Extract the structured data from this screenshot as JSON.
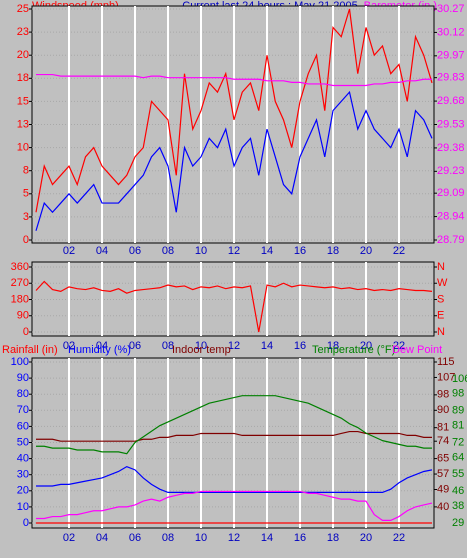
{
  "chart_data": [
    {
      "type": "line",
      "title": "Current last 24 hours : May 21 2005",
      "ylabel": "Windspeed (mph)",
      "y2label": "Barometer (in.)",
      "xlim": [
        0,
        24
      ],
      "xticks": [
        {
          "value": 2,
          "label": "02"
        },
        {
          "value": 4,
          "label": "04"
        },
        {
          "value": 6,
          "label": "06"
        },
        {
          "value": 8,
          "label": "08"
        },
        {
          "value": 10,
          "label": "10"
        },
        {
          "value": 12,
          "label": "12"
        },
        {
          "value": 14,
          "label": "14"
        },
        {
          "value": 16,
          "label": "16"
        },
        {
          "value": 18,
          "label": "18"
        },
        {
          "value": 20,
          "label": "20"
        },
        {
          "value": 22,
          "label": "22"
        }
      ],
      "ylim": [
        0,
        25
      ],
      "yticks": [
        0,
        {
          "value": 2.5,
          "label": "3"
        },
        5,
        {
          "value": 7.5,
          "label": "8"
        },
        10,
        {
          "value": 12.5,
          "label": "13"
        },
        15,
        {
          "value": 17.5,
          "label": "18"
        },
        20,
        {
          "value": 22.5,
          "label": "23"
        },
        25
      ],
      "y2lim": [
        28.79,
        30.27
      ],
      "y2ticks": [
        28.79,
        28.94,
        29.09,
        29.23,
        29.38,
        29.53,
        29.68,
        29.83,
        29.97,
        30.12,
        30.27
      ],
      "ycolor": "#ff0000",
      "y2color": "#ff00ff",
      "x": [
        0,
        0.5,
        1,
        1.5,
        2,
        2.5,
        3,
        3.5,
        4,
        4.5,
        5,
        5.5,
        6,
        6.5,
        7,
        7.5,
        8,
        8.5,
        9,
        9.5,
        10,
        10.5,
        11,
        11.5,
        12,
        12.5,
        13,
        13.5,
        14,
        14.5,
        15,
        15.5,
        16,
        16.5,
        17,
        17.5,
        18,
        18.5,
        19,
        19.5,
        20,
        20.5,
        21,
        21.5,
        22,
        22.5,
        23,
        23.5,
        24
      ],
      "series": [
        {
          "color": "#ff0000",
          "values": [
            3,
            8,
            6,
            7,
            8,
            6,
            9,
            10,
            8,
            7,
            6,
            7,
            9,
            10,
            15,
            14,
            13,
            7,
            18,
            12,
            14,
            17,
            16,
            18,
            13,
            16,
            17,
            14,
            20,
            15,
            13,
            10,
            15,
            18,
            20,
            14,
            23,
            22,
            25,
            18,
            23,
            20,
            21,
            18,
            19,
            15,
            22,
            20,
            17
          ]
        },
        {
          "color": "#0000ff",
          "values": [
            1,
            4,
            3,
            4,
            5,
            4,
            5,
            6,
            4,
            4,
            4,
            5,
            6,
            7,
            9,
            10,
            8,
            3,
            10,
            8,
            9,
            11,
            10,
            12,
            8,
            10,
            11,
            7,
            12,
            9,
            6,
            5,
            9,
            11,
            13,
            9,
            14,
            15,
            16,
            12,
            14,
            12,
            11,
            10,
            12,
            9,
            14,
            13,
            11
          ]
        },
        {
          "color": "#ff00ff",
          "axis": "y2",
          "values": [
            29.85,
            29.85,
            29.85,
            29.84,
            29.84,
            29.84,
            29.84,
            29.84,
            29.84,
            29.84,
            29.84,
            29.84,
            29.84,
            29.83,
            29.84,
            29.84,
            29.83,
            29.83,
            29.83,
            29.83,
            29.83,
            29.83,
            29.83,
            29.83,
            29.82,
            29.82,
            29.82,
            29.82,
            29.81,
            29.81,
            29.81,
            29.8,
            29.8,
            29.79,
            29.79,
            29.79,
            29.78,
            29.78,
            29.78,
            29.78,
            29.78,
            29.79,
            29.79,
            29.8,
            29.8,
            29.81,
            29.81,
            29.82,
            29.82
          ]
        }
      ]
    },
    {
      "type": "line",
      "xlim": [
        0,
        24
      ],
      "xticks": [
        {
          "value": 2,
          "label": "02"
        },
        {
          "value": 4,
          "label": "04"
        },
        {
          "value": 6,
          "label": "06"
        },
        {
          "value": 8,
          "label": "08"
        },
        {
          "value": 10,
          "label": "10"
        },
        {
          "value": 12,
          "label": "12"
        },
        {
          "value": 14,
          "label": "14"
        },
        {
          "value": 16,
          "label": "16"
        },
        {
          "value": 18,
          "label": "18"
        },
        {
          "value": 20,
          "label": "20"
        },
        {
          "value": 22,
          "label": "22"
        }
      ],
      "ylim": [
        0,
        360
      ],
      "yticks": [
        0,
        90,
        180,
        270,
        360
      ],
      "y2lim": [
        0,
        360
      ],
      "y2ticks": [
        {
          "value": 0,
          "label": "N"
        },
        {
          "value": 90,
          "label": "E"
        },
        {
          "value": 180,
          "label": "S"
        },
        {
          "value": 270,
          "label": "W"
        },
        {
          "value": 360,
          "label": "N"
        }
      ],
      "ycolor": "#ff0000",
      "y2color": "#ff0000",
      "x": [
        0,
        0.5,
        1,
        1.5,
        2,
        2.5,
        3,
        3.5,
        4,
        4.5,
        5,
        5.5,
        6,
        6.5,
        7,
        7.5,
        8,
        8.5,
        9,
        9.5,
        10,
        10.5,
        11,
        11.5,
        12,
        12.5,
        13,
        13.5,
        14,
        14.5,
        15,
        15.5,
        16,
        16.5,
        17,
        17.5,
        18,
        18.5,
        19,
        19.5,
        20,
        20.5,
        21,
        21.5,
        22,
        22.5,
        23,
        23.5,
        24
      ],
      "series": [
        {
          "color": "#ff0000",
          "values": [
            230,
            280,
            235,
            225,
            250,
            240,
            235,
            245,
            230,
            225,
            240,
            215,
            230,
            235,
            240,
            245,
            260,
            250,
            255,
            235,
            250,
            245,
            255,
            240,
            250,
            245,
            255,
            0,
            260,
            250,
            270,
            250,
            260,
            255,
            250,
            245,
            250,
            240,
            245,
            235,
            240,
            230,
            235,
            230,
            240,
            235,
            230,
            230,
            225
          ]
        }
      ]
    },
    {
      "type": "line",
      "xlim": [
        0,
        24
      ],
      "xticks": [
        {
          "value": 2,
          "label": "02"
        },
        {
          "value": 4,
          "label": "04"
        },
        {
          "value": 6,
          "label": "06"
        },
        {
          "value": 8,
          "label": "08"
        },
        {
          "value": 10,
          "label": "10"
        },
        {
          "value": 12,
          "label": "12"
        },
        {
          "value": 14,
          "label": "14"
        },
        {
          "value": 16,
          "label": "16"
        },
        {
          "value": 18,
          "label": "18"
        },
        {
          "value": 20,
          "label": "20"
        },
        {
          "value": 22,
          "label": "22"
        }
      ],
      "ylim": [
        0,
        100
      ],
      "yticks": [
        0,
        10,
        20,
        30,
        40,
        50,
        60,
        70,
        80,
        90,
        100
      ],
      "y2lim": [
        31.66,
        115
      ],
      "y2ticks": [
        40,
        49,
        57,
        65,
        74,
        81,
        90,
        98,
        107,
        115
      ],
      "y3lim": [
        29,
        115
      ],
      "y3ticks": [
        29,
        38,
        46,
        55,
        64,
        72,
        81,
        89,
        98,
        106
      ],
      "ycolor": "#0000ff",
      "y2color": "#800000",
      "y3color": "#008000",
      "x": [
        0,
        0.5,
        1,
        1.5,
        2,
        2.5,
        3,
        3.5,
        4,
        4.5,
        5,
        5.5,
        6,
        6.5,
        7,
        7.5,
        8,
        8.5,
        9,
        9.5,
        10,
        10.5,
        11,
        11.5,
        12,
        12.5,
        13,
        13.5,
        14,
        14.5,
        15,
        15.5,
        16,
        16.5,
        17,
        17.5,
        18,
        18.5,
        19,
        19.5,
        20,
        20.5,
        21,
        21.5,
        22,
        22.5,
        23,
        23.5,
        24
      ],
      "series": [
        {
          "name": "Rainfall (in)",
          "color": "#ff0000",
          "values": [
            0,
            0,
            0,
            0,
            0,
            0,
            0,
            0,
            0,
            0,
            0,
            0,
            0,
            0,
            0,
            0,
            0,
            0,
            0,
            0,
            0,
            0,
            0,
            0,
            0,
            0,
            0,
            0,
            0,
            0,
            0,
            0,
            0,
            0,
            0,
            0,
            0,
            0,
            0,
            0,
            0,
            0,
            0,
            0,
            0,
            0,
            0,
            0,
            0
          ]
        },
        {
          "name": "Humidity (%)",
          "color": "#0000ff",
          "values": [
            23,
            23,
            23,
            24,
            24,
            25,
            26,
            27,
            28,
            30,
            32,
            35,
            33,
            28,
            24,
            21,
            19,
            19,
            19,
            19,
            19,
            19,
            19,
            19,
            19,
            19,
            19,
            19,
            19,
            19,
            19,
            19,
            19,
            19,
            19,
            19,
            19,
            19,
            19,
            19,
            19,
            19,
            19,
            21,
            25,
            28,
            30,
            32,
            33
          ]
        },
        {
          "name": "Indoor temp",
          "color": "#800000",
          "axis": "y2",
          "values": [
            75,
            75,
            75,
            74,
            74,
            74,
            74,
            74,
            74,
            74,
            74,
            74,
            74,
            75,
            75,
            76,
            76,
            77,
            77,
            77,
            78,
            78,
            78,
            78,
            78,
            77,
            77,
            77,
            77,
            77,
            77,
            77,
            77,
            77,
            77,
            77,
            77,
            78,
            79,
            79,
            78,
            78,
            78,
            78,
            78,
            77,
            77,
            76,
            76
          ]
        },
        {
          "name": "Temperature (°F)",
          "color": "#008000",
          "axis": "y3",
          "values": [
            70,
            70,
            69,
            69,
            69,
            68,
            68,
            68,
            67,
            67,
            67,
            66,
            72,
            75,
            78,
            81,
            83,
            85,
            87,
            89,
            91,
            93,
            94,
            95,
            96,
            97,
            97,
            97,
            97,
            97,
            96,
            95,
            94,
            93,
            91,
            89,
            87,
            85,
            82,
            80,
            77,
            75,
            73,
            72,
            71,
            70,
            70,
            69,
            69
          ]
        },
        {
          "name": "Dew Point",
          "color": "#ff00ff",
          "axis": "y2",
          "values": [
            34,
            34,
            35,
            35,
            36,
            36,
            37,
            38,
            38,
            39,
            40,
            40,
            41,
            43,
            44,
            43,
            45,
            46,
            47,
            47,
            48,
            48,
            48,
            48,
            48,
            48,
            48,
            48,
            48,
            48,
            48,
            48,
            48,
            47,
            47,
            46,
            45,
            44,
            44,
            43,
            43,
            36,
            33,
            33,
            35,
            38,
            40,
            41,
            42
          ]
        }
      ]
    }
  ]
}
